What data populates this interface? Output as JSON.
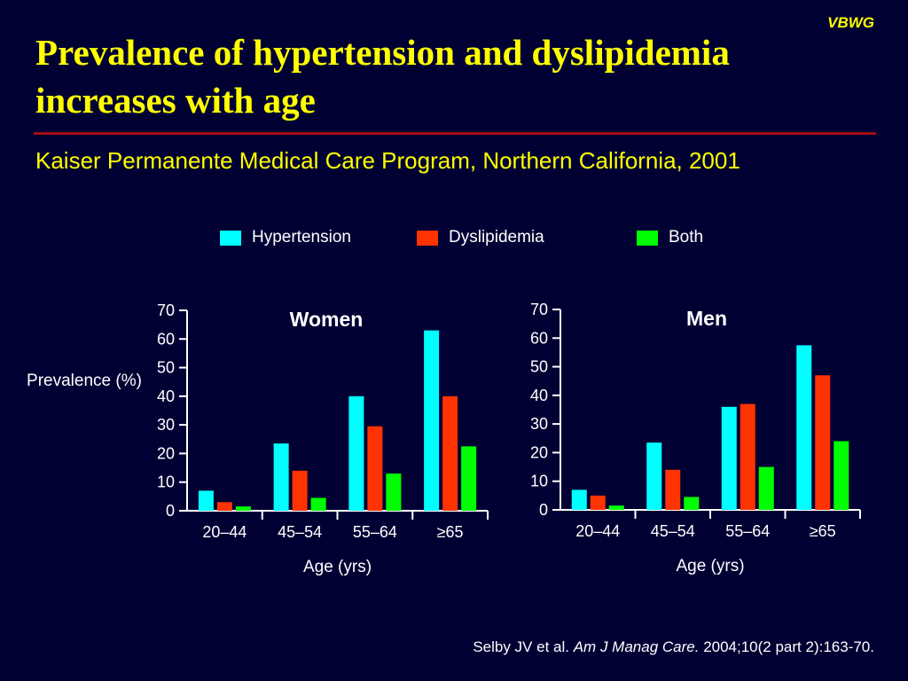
{
  "header": {
    "watermark": "VBWG",
    "title": "Prevalence of hypertension and dyslipidemia increases with age",
    "subtitle": "Kaiser Permanente Medical Care Program, Northern California, 2001"
  },
  "citation": {
    "authors": "Selby JV et al.",
    "journal": "Am J Manag Care.",
    "details": "2004;10(2 part 2):163-70."
  },
  "legend": [
    {
      "label": "Hypertension",
      "color": "#00ffff"
    },
    {
      "label": "Dyslipidemia",
      "color": "#ff3300"
    },
    {
      "label": "Both",
      "color": "#00ff00"
    }
  ],
  "ylabel": "Prevalence (%)",
  "chart_data": [
    {
      "type": "bar",
      "title": "Women",
      "xlabel": "Age (yrs)",
      "ylabel": "Prevalence (%)",
      "ylim": [
        0,
        70
      ],
      "yticks": [
        0,
        10,
        20,
        30,
        40,
        50,
        60,
        70
      ],
      "categories": [
        "20–44",
        "45–54",
        "55–64",
        "≥65"
      ],
      "series": [
        {
          "name": "Hypertension",
          "color": "#00ffff",
          "values": [
            7,
            23.5,
            40,
            63
          ]
        },
        {
          "name": "Dyslipidemia",
          "color": "#ff3300",
          "values": [
            3,
            14,
            29.5,
            40
          ]
        },
        {
          "name": "Both",
          "color": "#00ff00",
          "values": [
            1.5,
            4.5,
            13,
            22.5
          ]
        }
      ]
    },
    {
      "type": "bar",
      "title": "Men",
      "xlabel": "Age (yrs)",
      "ylim": [
        0,
        70
      ],
      "yticks": [
        0,
        10,
        20,
        30,
        40,
        50,
        60,
        70
      ],
      "categories": [
        "20–44",
        "45–54",
        "55–64",
        "≥65"
      ],
      "series": [
        {
          "name": "Hypertension",
          "color": "#00ffff",
          "values": [
            7,
            23.5,
            36,
            57.5
          ]
        },
        {
          "name": "Dyslipidemia",
          "color": "#ff3300",
          "values": [
            5,
            14,
            37,
            47
          ]
        },
        {
          "name": "Both",
          "color": "#00ff00",
          "values": [
            1.5,
            4.5,
            15,
            24
          ]
        }
      ]
    }
  ]
}
